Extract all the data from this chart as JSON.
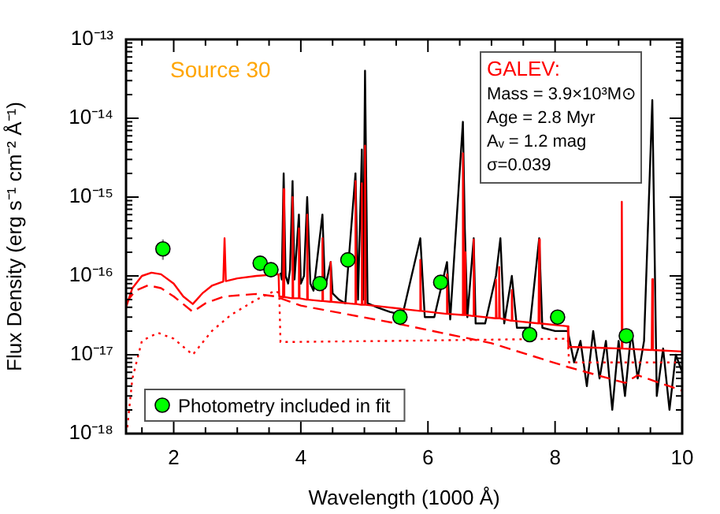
{
  "chart_data": {
    "type": "line",
    "xlabel": "Wavelength (1000 Å)",
    "ylabel": "Flux Density (erg s⁻¹ cm⁻² Å⁻¹)",
    "annotations": [
      "Source 30",
      "GALEV:",
      "Mass = 3.9×10³M⊙",
      "Age = 2.8 Myr",
      "Aᵥ = 1.2 mag",
      "σ=0.039"
    ],
    "log": "y",
    "xlim": [
      1.25,
      10
    ],
    "ylim": [
      1e-18,
      1e-13
    ],
    "xticks": [
      {
        "value": 1.5,
        "label": null
      },
      2,
      {
        "value": 2.5,
        "label": null
      },
      {
        "value": 3,
        "label": null
      },
      {
        "value": 3.5,
        "label": null
      },
      4,
      {
        "value": 4.5,
        "label": null
      },
      {
        "value": 5,
        "label": null
      },
      {
        "value": 5.5,
        "label": null
      },
      6,
      {
        "value": 6.5,
        "label": null
      },
      {
        "value": 7,
        "label": null
      },
      {
        "value": 7.5,
        "label": null
      },
      8,
      {
        "value": 8.5,
        "label": null
      },
      {
        "value": 9,
        "label": null
      },
      {
        "value": 9.5,
        "label": null
      },
      10
    ],
    "yticks": [
      {
        "value": 1e-18,
        "label": "10⁻¹⁸"
      },
      {
        "value": 2e-18,
        "label": null
      },
      {
        "value": 3e-18,
        "label": null
      },
      {
        "value": 4e-18,
        "label": null
      },
      {
        "value": 5e-18,
        "label": null
      },
      {
        "value": 6e-18,
        "label": null
      },
      {
        "value": 7e-18,
        "label": null
      },
      {
        "value": 8e-18,
        "label": null
      },
      {
        "value": 9e-18,
        "label": null
      },
      {
        "value": 1e-17,
        "label": "10⁻¹⁷"
      },
      {
        "value": 2e-17,
        "label": null
      },
      {
        "value": 3e-17,
        "label": null
      },
      {
        "value": 4e-17,
        "label": null
      },
      {
        "value": 5e-17,
        "label": null
      },
      {
        "value": 6e-17,
        "label": null
      },
      {
        "value": 7e-17,
        "label": null
      },
      {
        "value": 8e-17,
        "label": null
      },
      {
        "value": 9e-17,
        "label": null
      },
      {
        "value": 1e-16,
        "label": "10⁻¹⁶"
      },
      {
        "value": 2e-16,
        "label": null
      },
      {
        "value": 3e-16,
        "label": null
      },
      {
        "value": 4e-16,
        "label": null
      },
      {
        "value": 5e-16,
        "label": null
      },
      {
        "value": 6e-16,
        "label": null
      },
      {
        "value": 7e-16,
        "label": null
      },
      {
        "value": 8e-16,
        "label": null
      },
      {
        "value": 9e-16,
        "label": null
      },
      {
        "value": 1e-15,
        "label": "10⁻¹⁵"
      },
      {
        "value": 2e-15,
        "label": null
      },
      {
        "value": 3e-15,
        "label": null
      },
      {
        "value": 4e-15,
        "label": null
      },
      {
        "value": 5e-15,
        "label": null
      },
      {
        "value": 6e-15,
        "label": null
      },
      {
        "value": 7e-15,
        "label": null
      },
      {
        "value": 8e-15,
        "label": null
      },
      {
        "value": 9e-15,
        "label": null
      },
      {
        "value": 1e-14,
        "label": "10⁻¹⁴"
      },
      {
        "value": 2e-14,
        "label": null
      },
      {
        "value": 3e-14,
        "label": null
      },
      {
        "value": 4e-14,
        "label": null
      },
      {
        "value": 5e-14,
        "label": null
      },
      {
        "value": 6e-14,
        "label": null
      },
      {
        "value": 7e-14,
        "label": null
      },
      {
        "value": 8e-14,
        "label": null
      },
      {
        "value": 9e-14,
        "label": null
      },
      {
        "value": 1e-13,
        "label": "10⁻¹³"
      }
    ],
    "grid": false,
    "legend": "bottom left",
    "series": [
      {
        "color": "#000000",
        "line_style": "solid",
        "marker": "none",
        "x": [
          3.68,
          3.7,
          3.73,
          3.76,
          3.8,
          3.83,
          3.87,
          3.9,
          3.97,
          4.0,
          4.05,
          4.1,
          4.15,
          4.2,
          4.34,
          4.38,
          4.47,
          4.5,
          4.6,
          4.7,
          4.86,
          4.9,
          4.96,
          4.98,
          5.01,
          5.05,
          5.2,
          5.4,
          5.6,
          5.88,
          5.95,
          6.1,
          6.3,
          6.35,
          6.55,
          6.58,
          6.62,
          6.72,
          6.75,
          6.9,
          7.07,
          7.14,
          7.2,
          7.32,
          7.4,
          7.6,
          7.75,
          7.8,
          8.0,
          8.2,
          8.3,
          8.4,
          8.5,
          8.6,
          8.7,
          8.8,
          8.9,
          9.0,
          9.1,
          9.2,
          9.3,
          9.4,
          9.53,
          9.6,
          9.7,
          9.8,
          9.9,
          10
        ],
        "values": [
          1.1e-16,
          9e-17,
          2e-15,
          1e-16,
          8e-17,
          1.2e-16,
          1.6e-15,
          9e-17,
          6e-16,
          8e-17,
          1e-16,
          1e-15,
          8e-17,
          6.5e-17,
          6e-16,
          7e-17,
          1.5e-16,
          6e-17,
          5e-17,
          4.5e-17,
          2e-15,
          5e-17,
          4e-15,
          5e-17,
          4e-14,
          4.5e-17,
          4e-17,
          3.5e-17,
          3.2e-17,
          3e-16,
          3e-17,
          3e-17,
          1.5e-16,
          2.8e-17,
          9e-15,
          4e-16,
          3e-17,
          3e-16,
          2.5e-17,
          2.5e-17,
          1e-16,
          3e-16,
          2.5e-17,
          1e-16,
          2.2e-17,
          2.2e-17,
          3e-16,
          2.2e-17,
          2e-17,
          2e-17,
          8e-18,
          1.5e-17,
          4e-18,
          2e-17,
          5e-18,
          1.5e-17,
          2e-18,
          1.5e-17,
          3e-18,
          2e-17,
          5e-18,
          1.5e-17,
          1.7e-14,
          3e-18,
          1.2e-17,
          2e-18,
          1e-17,
          6e-18
        ]
      },
      {
        "color": "#ff0000",
        "line_style": "solid",
        "marker": "none",
        "x": [
          1.25,
          1.35,
          1.5,
          1.65,
          1.8,
          2.0,
          2.15,
          2.3,
          2.45,
          2.6,
          2.78,
          2.8,
          2.82,
          3.0,
          3.3,
          3.65,
          3.66,
          3.72,
          3.73,
          3.74,
          3.86,
          3.87,
          3.88,
          3.96,
          3.97,
          3.98,
          4.09,
          4.1,
          4.11,
          4.33,
          4.34,
          4.35,
          4.46,
          4.47,
          4.48,
          4.85,
          4.86,
          4.87,
          4.95,
          4.96,
          4.97,
          5.0,
          5.01,
          5.02,
          5.87,
          5.88,
          5.89,
          6.29,
          6.3,
          6.31,
          6.54,
          6.55,
          6.57,
          6.58,
          6.59,
          6.71,
          6.72,
          6.73,
          7.06,
          7.07,
          7.08,
          7.11,
          7.12,
          7.13,
          7.31,
          7.32,
          7.33,
          7.74,
          7.75,
          7.76,
          8.2,
          8.21,
          9.04,
          9.05,
          9.06,
          9.52,
          9.53,
          9.54,
          10
        ],
        "values": [
          4e-17,
          7e-17,
          1e-16,
          1.1e-16,
          1.05e-16,
          8e-17,
          5.5e-17,
          4.4e-17,
          6e-17,
          7.5e-17,
          8.5e-17,
          3e-16,
          8.6e-17,
          9.3e-17,
          1e-16,
          1.05e-16,
          5.5e-17,
          5.4e-17,
          1.26e-15,
          5.4e-17,
          5.2e-17,
          1e-15,
          5.2e-17,
          5.2e-17,
          4e-16,
          5.2e-17,
          5e-17,
          6e-16,
          5e-17,
          4.8e-17,
          3e-16,
          4.8e-17,
          4.7e-17,
          1.5e-16,
          4.7e-17,
          4.4e-17,
          1.6e-15,
          4.4e-17,
          4.3e-17,
          1.5e-15,
          4.3e-17,
          4.3e-17,
          4.5e-15,
          4.3e-17,
          3.6e-17,
          1.6e-16,
          3.6e-17,
          3.3e-17,
          1.05e-16,
          3.3e-17,
          3.2e-17,
          3.6e-15,
          3.2e-17,
          2e-16,
          3.2e-17,
          3.1e-17,
          2.9e-16,
          3.1e-17,
          2.9e-17,
          9e-17,
          2.9e-17,
          2.9e-17,
          1.3e-16,
          2.9e-17,
          2.7e-17,
          6.6e-17,
          2.7e-17,
          2.5e-17,
          2.9e-16,
          2.5e-17,
          2.3e-17,
          1.26e-17,
          1.2e-17,
          8.7e-16,
          1.2e-17,
          1.15e-17,
          9.1e-17,
          1.15e-17,
          1.1e-17
        ]
      },
      {
        "color": "#ff0000",
        "line_style": "dashed",
        "marker": "none",
        "x": [
          1.25,
          1.4,
          1.6,
          1.8,
          2.0,
          2.3,
          2.5,
          2.8,
          3.3,
          3.6,
          4.0,
          5.5,
          7.0,
          8.2,
          9.1,
          9.3,
          10
        ],
        "values": [
          4.6e-17,
          6.5e-17,
          7.6e-17,
          7e-17,
          5.5e-17,
          3.5e-17,
          4.5e-17,
          5.5e-17,
          5.9e-17,
          5.5e-17,
          4.2e-17,
          2.5e-17,
          1.4e-17,
          7e-18,
          4.4e-18,
          5.5e-18,
          3.5e-18
        ]
      },
      {
        "color": "#ff0000",
        "line_style": "dotted",
        "marker": "none",
        "x": [
          1.27,
          1.35,
          1.5,
          1.75,
          2.0,
          2.3,
          2.6,
          2.9,
          3.3,
          3.6,
          3.66,
          3.68,
          5.5,
          8.2,
          8.22,
          10
        ],
        "values": [
          1.2e-18,
          5e-18,
          1.5e-17,
          1.9e-17,
          1.6e-17,
          1e-17,
          2e-17,
          3.2e-17,
          5e-17,
          6.5e-17,
          6e-17,
          1.45e-17,
          1.5e-17,
          1.6e-17,
          8e-18,
          8e-18
        ]
      },
      {
        "type": "scatter",
        "name": "Photometry included in fit",
        "color": "#00ff00",
        "marker": "circle",
        "x": [
          1.83,
          3.36,
          3.53,
          4.3,
          4.74,
          5.56,
          6.2,
          7.6,
          8.04,
          9.12
        ],
        "values": [
          2.2e-16,
          1.45e-16,
          1.2e-16,
          8e-17,
          1.6e-16,
          3e-17,
          8.3e-17,
          1.8e-17,
          3e-17,
          1.74e-17
        ],
        "errors": [
          [
            1.6e-16,
            2.9e-16
          ],
          null,
          null,
          null,
          null,
          null,
          null,
          null,
          null,
          null
        ]
      }
    ]
  }
}
